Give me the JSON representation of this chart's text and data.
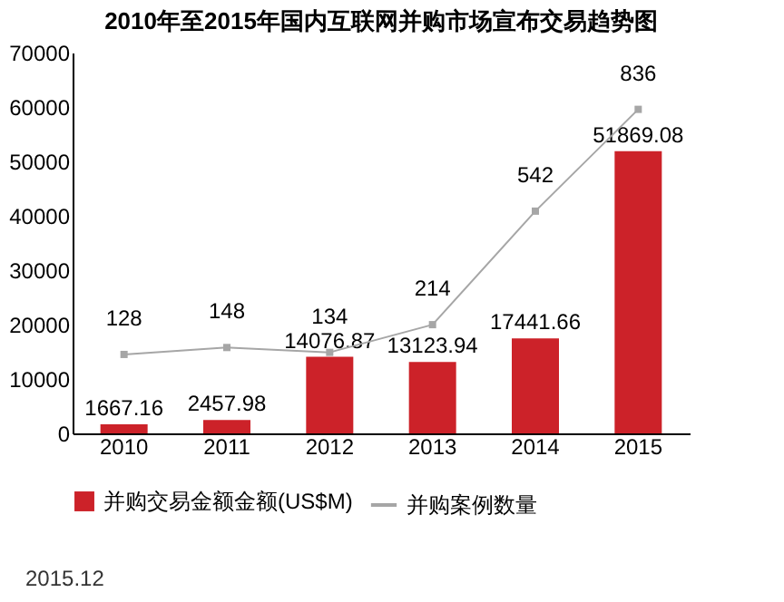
{
  "chart_data": {
    "type": "bar",
    "title": "2010年至2015年国内互联网并购市场宣布交易趋势图",
    "categories": [
      "2010",
      "2011",
      "2012",
      "2013",
      "2014",
      "2015"
    ],
    "series": [
      {
        "name": "并购交易金额金额(US$M)",
        "color": "#cc2229",
        "values": [
          1667.16,
          2457.98,
          14076.87,
          13123.94,
          17441.66,
          51869.08
        ]
      },
      {
        "name": "并购案例数量",
        "type": "line",
        "axis": "y2",
        "color": "#a6a6a6",
        "values": [
          128,
          148,
          134,
          214,
          542,
          836
        ]
      }
    ],
    "ylim": [
      0,
      70000
    ],
    "yticks": [
      0,
      10000,
      20000,
      30000,
      40000,
      50000,
      60000,
      70000
    ],
    "data_labels": true,
    "legend": "bottom",
    "marker": "square",
    "annotations": [
      "2015.12"
    ]
  }
}
